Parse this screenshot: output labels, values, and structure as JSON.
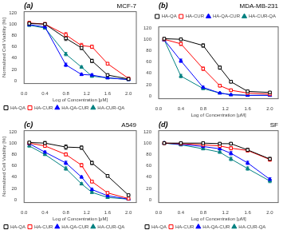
{
  "chart_data": [
    {
      "type": "line",
      "title": "MCF-7",
      "annotations": [
        "(a)"
      ],
      "xlabel": "Log of Concentration [μM]",
      "ylabel": "Normalized Cell Viability [%]",
      "x": [
        0.1,
        0.4,
        0.8,
        1.1,
        1.3,
        1.6,
        2.0
      ],
      "series": [
        {
          "name": "HA-QA",
          "color": "black",
          "marker": "square",
          "values": [
            101,
            100,
            75,
            58,
            35,
            10,
            3
          ],
          "yerr": [
            3,
            2,
            4,
            3,
            3,
            2,
            1
          ]
        },
        {
          "name": "HA-CUR",
          "color": "red",
          "marker": "square",
          "values": [
            102,
            100,
            81,
            62,
            60,
            30,
            4
          ],
          "yerr": [
            3,
            3,
            4,
            4,
            3,
            2,
            1
          ]
        },
        {
          "name": "HA-QA-CUR",
          "color": "blue",
          "marker": "triangle",
          "values": [
            99,
            95,
            28,
            11,
            10,
            5,
            2
          ],
          "yerr": [
            2,
            2,
            3,
            2,
            2,
            1,
            1
          ]
        },
        {
          "name": "HA-CUR-QA",
          "color": "teal",
          "marker": "triangle",
          "values": [
            98,
            93,
            47,
            24,
            8,
            5,
            2
          ],
          "yerr": [
            2,
            2,
            3,
            2,
            2,
            1,
            1
          ]
        }
      ],
      "xlim": [
        0.0,
        2.15
      ],
      "ylim": [
        -5,
        122
      ],
      "xticks": [
        {
          "value": 0.0,
          "label": "0.0"
        },
        0.4,
        0.8,
        1.2,
        1.6,
        {
          "value": 2.0,
          "label": "2.0"
        }
      ],
      "yticks": [
        0,
        20,
        40,
        60,
        80,
        100,
        120
      ],
      "grid": false,
      "legend": "lower left"
    },
    {
      "type": "line",
      "title": "MDA-MB-231",
      "annotations": [
        "(b)"
      ],
      "xlabel": "Log of Concentration [μM]",
      "x": [
        0.1,
        0.4,
        0.8,
        1.1,
        1.3,
        1.6,
        2.0
      ],
      "series": [
        {
          "name": "HA-QA",
          "color": "black",
          "marker": "square",
          "values": [
            101,
            100,
            89,
            50,
            25,
            8,
            6
          ],
          "yerr": [
            2,
            2,
            3,
            3,
            2,
            1,
            1
          ]
        },
        {
          "name": "HA-CUR",
          "color": "red",
          "marker": "square",
          "values": [
            100,
            92,
            48,
            18,
            10,
            5,
            3
          ],
          "yerr": [
            2,
            3,
            3,
            2,
            2,
            1,
            1
          ]
        },
        {
          "name": "HA-QA-CUR",
          "color": "blue",
          "marker": "triangle",
          "values": [
            99,
            62,
            15,
            5,
            2,
            1,
            1
          ],
          "yerr": [
            2,
            3,
            2,
            1,
            1,
            1,
            1
          ]
        },
        {
          "name": "HA-CUR-QA",
          "color": "teal",
          "marker": "triangle",
          "values": [
            99,
            35,
            13,
            5,
            2,
            1,
            1
          ],
          "yerr": [
            2,
            3,
            2,
            1,
            1,
            1,
            1
          ]
        }
      ],
      "xlim": [
        0.0,
        2.15
      ],
      "ylim": [
        -5,
        122
      ],
      "xticks": [
        {
          "value": 0.0,
          "label": "0.0"
        },
        0.4,
        0.8,
        1.2,
        1.6,
        {
          "value": 2.0,
          "label": "2.0"
        }
      ],
      "yticks": [
        0,
        20,
        40,
        60,
        80,
        100,
        120
      ],
      "grid": false,
      "legend": "upper right"
    },
    {
      "type": "line",
      "title": "A549",
      "annotations": [
        "(c)"
      ],
      "xlabel": "Log of Concentration [μM]",
      "ylabel": "Normalized Cell Viability [%]",
      "x": [
        0.1,
        0.4,
        0.8,
        1.1,
        1.3,
        1.6,
        2.0
      ],
      "series": [
        {
          "name": "HA-QA",
          "color": "black",
          "marker": "square",
          "values": [
            101,
            100,
            93,
            92,
            65,
            42,
            8
          ],
          "yerr": [
            2,
            3,
            4,
            3,
            3,
            2,
            1
          ]
        },
        {
          "name": "HA-CUR",
          "color": "red",
          "marker": "square",
          "values": [
            100,
            95,
            80,
            61,
            32,
            12,
            2
          ],
          "yerr": [
            2,
            2,
            3,
            3,
            2,
            2,
            1
          ]
        },
        {
          "name": "HA-QA-CUR",
          "color": "blue",
          "marker": "triangle",
          "values": [
            99,
            84,
            65,
            40,
            18,
            7,
            1
          ],
          "yerr": [
            2,
            2,
            3,
            2,
            2,
            1,
            1
          ]
        },
        {
          "name": "HA-CUR-QA",
          "color": "teal",
          "marker": "triangle",
          "values": [
            95,
            80,
            55,
            28,
            13,
            4,
            1
          ],
          "yerr": [
            2,
            2,
            3,
            2,
            2,
            1,
            1
          ]
        }
      ],
      "xlim": [
        0.0,
        2.15
      ],
      "ylim": [
        -5,
        122
      ],
      "xticks": [
        {
          "value": 0.0,
          "label": "0.0"
        },
        0.4,
        0.8,
        1.2,
        1.6,
        {
          "value": 2.0,
          "label": "2.0"
        }
      ],
      "yticks": [
        0,
        20,
        40,
        60,
        80,
        100,
        120
      ],
      "grid": false,
      "legend": "lower left"
    },
    {
      "type": "line",
      "title": "SF",
      "annotations": [
        "(d)"
      ],
      "xlabel": "Log of Concentration [μM]",
      "x": [
        0.1,
        0.4,
        0.8,
        1.1,
        1.3,
        1.6,
        2.0
      ],
      "series": [
        {
          "name": "HA-QA",
          "color": "black",
          "marker": "square",
          "values": [
            100,
            100,
            100,
            99,
            99,
            88,
            72
          ],
          "yerr": [
            2,
            2,
            2,
            2,
            2,
            3,
            3
          ]
        },
        {
          "name": "HA-CUR",
          "color": "red",
          "marker": "square",
          "values": [
            100,
            99,
            97,
            95,
            91,
            87,
            71
          ],
          "yerr": [
            2,
            2,
            2,
            2,
            3,
            3,
            3
          ]
        },
        {
          "name": "HA-QA-CUR",
          "color": "blue",
          "marker": "triangle",
          "values": [
            100,
            98,
            94,
            90,
            82,
            65,
            36
          ],
          "yerr": [
            2,
            2,
            2,
            2,
            3,
            3,
            3
          ]
        },
        {
          "name": "HA-CUR-QA",
          "color": "teal",
          "marker": "triangle",
          "values": [
            100,
            97,
            90,
            84,
            72,
            55,
            33
          ],
          "yerr": [
            2,
            2,
            2,
            2,
            3,
            3,
            3
          ]
        }
      ],
      "xlim": [
        0.0,
        2.15
      ],
      "ylim": [
        -5,
        122
      ],
      "xticks": [
        {
          "value": 0.0,
          "label": "0.0"
        },
        0.4,
        0.8,
        1.2,
        1.6,
        {
          "value": 2.0,
          "label": "2.0"
        }
      ],
      "yticks": [
        0,
        20,
        40,
        60,
        80,
        100,
        120
      ],
      "grid": false,
      "legend": "lower left"
    }
  ]
}
